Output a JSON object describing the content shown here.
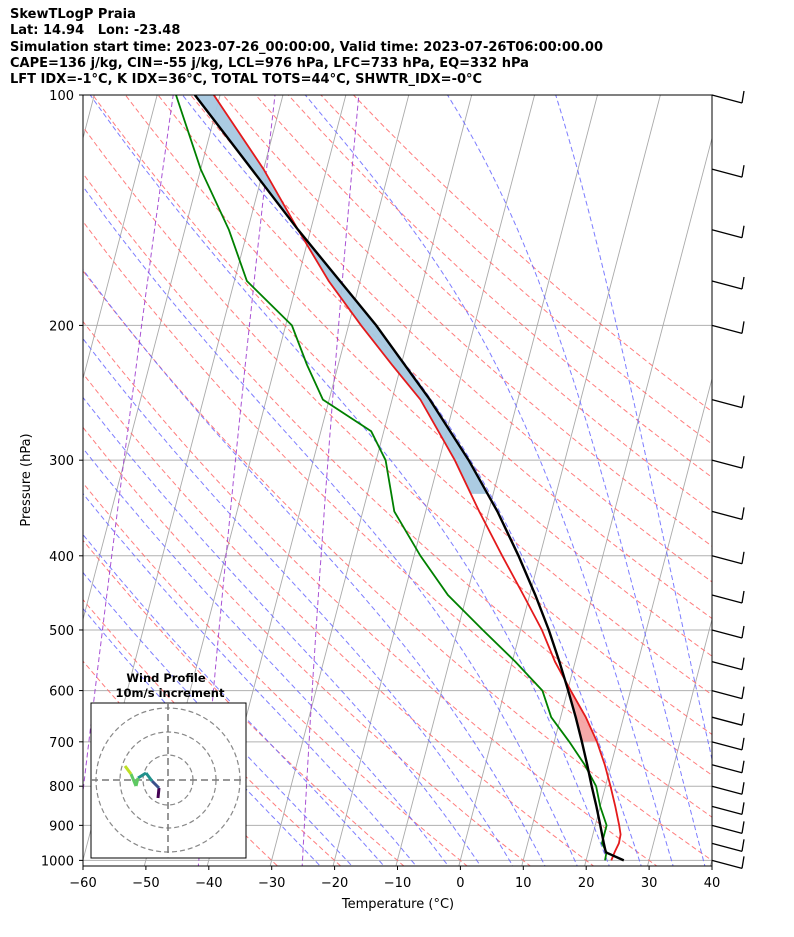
{
  "header": {
    "line1": "SkewTLogP Praia",
    "line2": "Lat: 14.94   Lon: -23.48",
    "line3": "Simulation start time: 2023-07-26_00:00:00, Valid time: 2023-07-26T06:00:00.00",
    "line4": "CAPE=136 j/kg, CIN=-55 j/kg, LCL=976 hPa, LFC=733 hPa, EQ=332 hPa",
    "line5": "LFT IDX=-1°C, K IDX=36°C, TOTAL TOTS=44°C, SHWTR_IDX=-0°C"
  },
  "chart_data": {
    "type": "line",
    "subtype": "skew-t log-p",
    "xlabel": "Temperature (°C)",
    "ylabel": "Pressure (hPa)",
    "xlim": [
      -60,
      40
    ],
    "ylim": [
      1050,
      100
    ],
    "yscale": "log",
    "x_ticks": [
      "−60",
      "−50",
      "−40",
      "−30",
      "−20",
      "−10",
      "0",
      "10",
      "20",
      "30",
      "40"
    ],
    "y_ticks": [
      1000,
      900,
      800,
      700,
      600,
      500,
      400,
      300,
      200,
      100
    ],
    "grid": true,
    "colors": {
      "temperature": "#e41a1c",
      "dewpoint": "#008000",
      "parcel": "#000000",
      "cape_fill": "#a6c8e0",
      "cin_fill": "#f4a4a4",
      "dry_adiabat": "#ff6666",
      "moist_adiabat": "#6666ff",
      "mixing_ratio": "#9933cc",
      "isotherm": "#aaaaaa"
    },
    "series": [
      {
        "kind": "temperature",
        "points": [
          [
            1000,
            24.0
          ],
          [
            975,
            24.2
          ],
          [
            950,
            24.5
          ],
          [
            925,
            24.4
          ],
          [
            900,
            23.8
          ],
          [
            850,
            22.4
          ],
          [
            800,
            20.8
          ],
          [
            750,
            19.0
          ],
          [
            700,
            16.8
          ],
          [
            650,
            14.0
          ],
          [
            600,
            10.5
          ],
          [
            550,
            6.8
          ],
          [
            500,
            3.4
          ],
          [
            450,
            -1.0
          ],
          [
            400,
            -6.0
          ],
          [
            350,
            -11.5
          ],
          [
            300,
            -17.5
          ],
          [
            250,
            -25.5
          ],
          [
            225,
            -31.5
          ],
          [
            200,
            -38.0
          ],
          [
            175,
            -45.0
          ],
          [
            150,
            -52.0
          ],
          [
            125,
            -60.0
          ],
          [
            100,
            -71.0
          ]
        ]
      },
      {
        "kind": "dewpoint",
        "points": [
          [
            1000,
            23.0
          ],
          [
            975,
            22.9
          ],
          [
            950,
            21.8
          ],
          [
            900,
            21.8
          ],
          [
            850,
            20.0
          ],
          [
            800,
            18.5
          ],
          [
            750,
            15.8
          ],
          [
            700,
            12.4
          ],
          [
            650,
            8.5
          ],
          [
            600,
            6.0
          ],
          [
            550,
            0.5
          ],
          [
            500,
            -6.0
          ],
          [
            450,
            -13.0
          ],
          [
            400,
            -19.0
          ],
          [
            350,
            -25.0
          ],
          [
            300,
            -28.5
          ],
          [
            275,
            -32.0
          ],
          [
            250,
            -41.0
          ],
          [
            225,
            -45.0
          ],
          [
            200,
            -49.0
          ],
          [
            175,
            -58.0
          ],
          [
            150,
            -63.0
          ],
          [
            125,
            -70.0
          ],
          [
            100,
            -77.0
          ]
        ]
      },
      {
        "kind": "parcel",
        "points": [
          [
            1000,
            26.0
          ],
          [
            976,
            22.8
          ],
          [
            950,
            22.1
          ],
          [
            900,
            20.8
          ],
          [
            850,
            19.4
          ],
          [
            800,
            17.8
          ],
          [
            750,
            16.2
          ],
          [
            700,
            14.4
          ],
          [
            650,
            12.4
          ],
          [
            600,
            10.1
          ],
          [
            550,
            7.5
          ],
          [
            500,
            4.5
          ],
          [
            450,
            0.9
          ],
          [
            400,
            -3.4
          ],
          [
            350,
            -8.6
          ],
          [
            300,
            -15.3
          ],
          [
            250,
            -24.0
          ],
          [
            200,
            -35.6
          ],
          [
            150,
            -52.0
          ],
          [
            100,
            -74.0
          ]
        ]
      }
    ],
    "inset": {
      "title": "Wind Profile",
      "subtitle": "10m/s increment",
      "rings_ms": [
        10,
        20,
        30,
        40
      ]
    }
  }
}
